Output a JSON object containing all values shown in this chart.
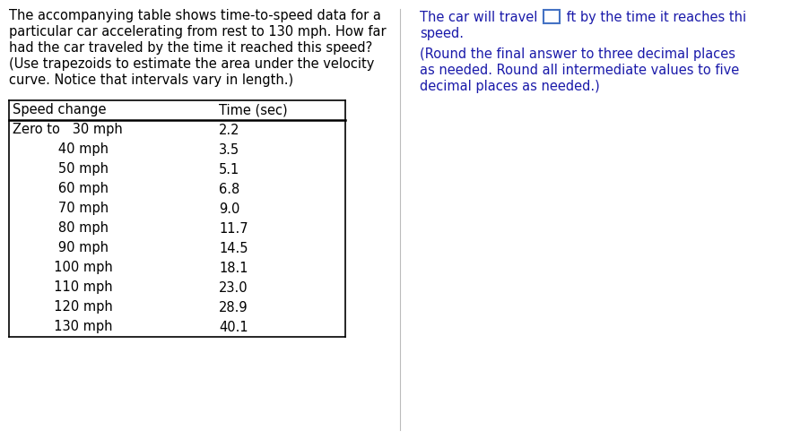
{
  "problem_text_lines": [
    "The accompanying table shows time-to-speed data for a",
    "particular car accelerating from rest to 130 mph. How far",
    "had the car traveled by the time it reached this speed?",
    "(Use trapezoids to estimate the area under the velocity",
    "curve. Notice that intervals vary in length.)"
  ],
  "table_header_col1": "Speed change",
  "table_header_col2": "Time (sec)",
  "table_col1_rows": [
    "Zero to   30 mph",
    "           40 mph",
    "           50 mph",
    "           60 mph",
    "           70 mph",
    "           80 mph",
    "           90 mph",
    "          100 mph",
    "          110 mph",
    "          120 mph",
    "          130 mph"
  ],
  "table_col2_rows": [
    "2.2",
    "3.5",
    "5.1",
    "6.8",
    "9.0",
    "11.7",
    "14.5",
    "18.1",
    "23.0",
    "28.9",
    "40.1"
  ],
  "right_line1_part1": "The car will travel ",
  "right_line1_part2": " ft by the time it reaches thi",
  "right_line2": "speed.",
  "right_line3": "(Round the final answer to three decimal places",
  "right_line4": "as needed. Round all intermediate values to five",
  "right_line5": "decimal places as needed.)",
  "bg_color": "#ffffff",
  "text_color_black": "#000000",
  "text_color_blue": "#1a1aaa",
  "table_border_color": "#000000",
  "input_box_color": "#4472c4",
  "font_size": 10.5,
  "table_font_size": 10.5
}
